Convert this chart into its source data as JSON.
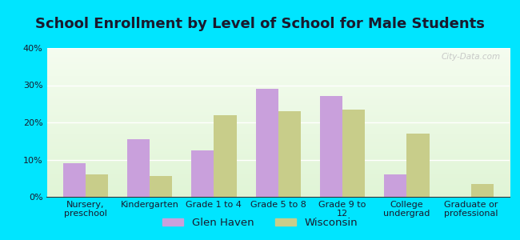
{
  "title": "School Enrollment by Level of School for Male Students",
  "categories": [
    "Nursery,\npreschool",
    "Kindergarten",
    "Grade 1 to 4",
    "Grade 5 to 8",
    "Grade 9 to\n12",
    "College\nundergrad",
    "Graduate or\nprofessional"
  ],
  "glen_haven": [
    9.0,
    15.5,
    12.5,
    29.0,
    27.0,
    6.0,
    0.0
  ],
  "wisconsin": [
    6.0,
    5.5,
    22.0,
    23.0,
    23.5,
    17.0,
    3.5
  ],
  "glen_haven_color": "#c9a0dc",
  "wisconsin_color": "#c8cd8a",
  "background_outer": "#00e5ff",
  "ylim": [
    0,
    40
  ],
  "yticks": [
    0,
    10,
    20,
    30,
    40
  ],
  "bar_width": 0.35,
  "legend_labels": [
    "Glen Haven",
    "Wisconsin"
  ],
  "title_fontsize": 13,
  "tick_fontsize": 8.0,
  "legend_fontsize": 9.5,
  "watermark": "City-Data.com"
}
